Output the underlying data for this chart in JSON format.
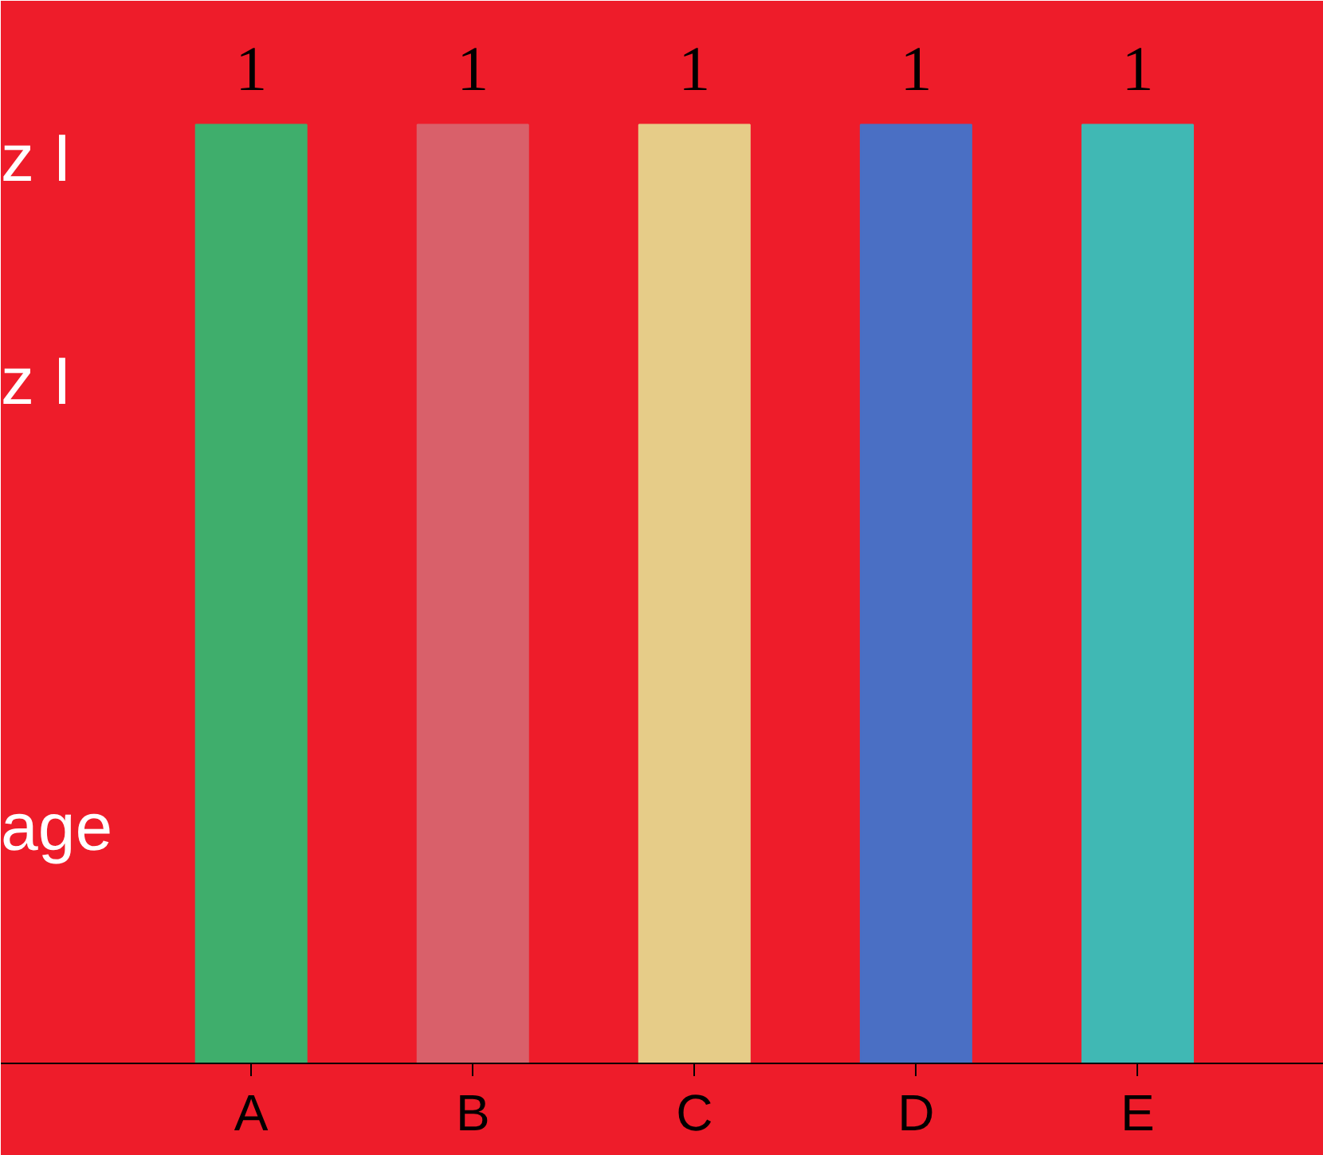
{
  "chart_data": {
    "type": "bar",
    "categories": [
      "A",
      "B",
      "C",
      "D",
      "E"
    ],
    "values": [
      1,
      1,
      1,
      1,
      1
    ],
    "colors": [
      "#3fae6c",
      "#d9606a",
      "#e6cc88",
      "#4a6fc4",
      "#40b8b4"
    ],
    "data_labels": true,
    "annotations": [
      "z I",
      "z I",
      "age"
    ]
  }
}
